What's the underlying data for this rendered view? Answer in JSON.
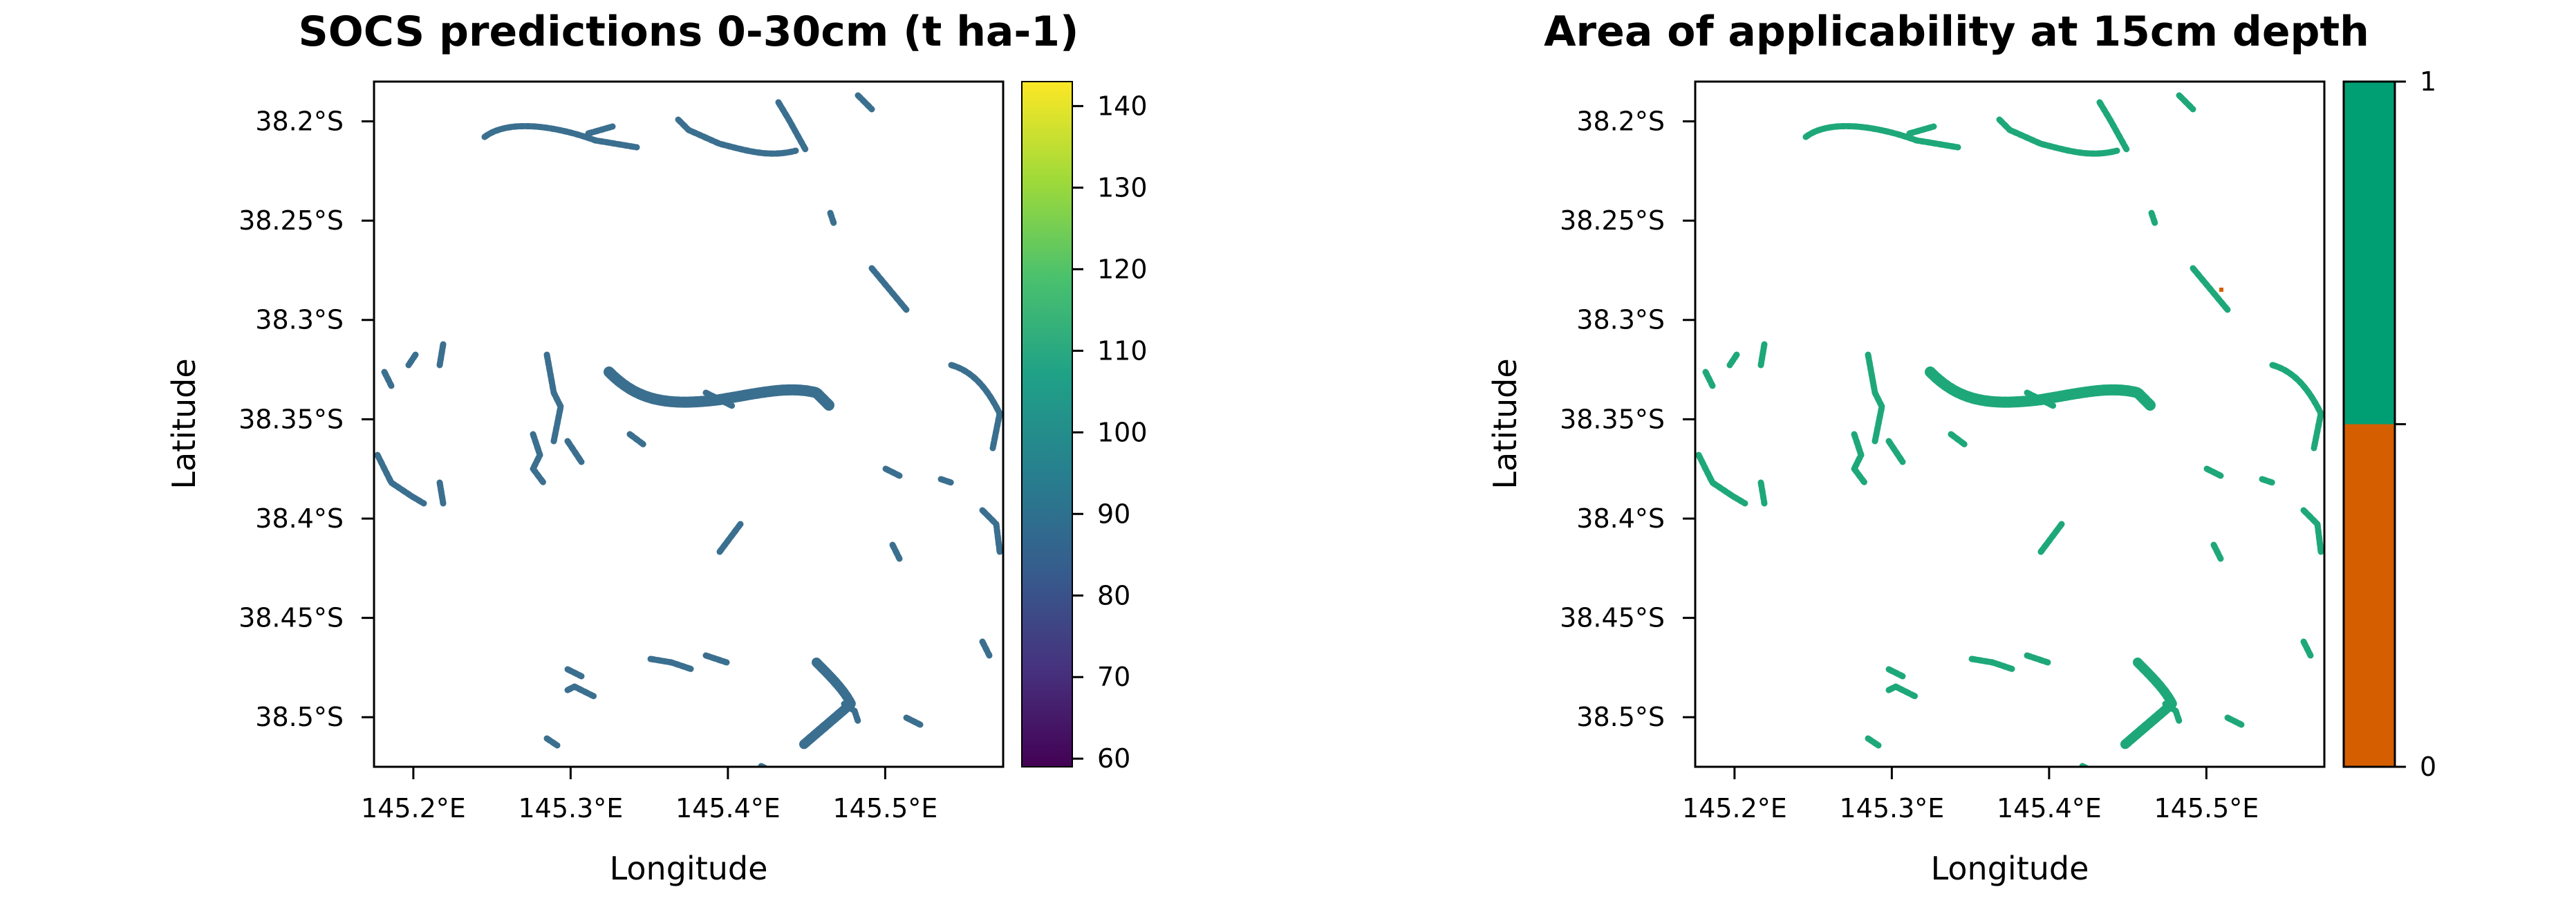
{
  "colors": {
    "predictions_ramp": [
      "#440154",
      "#46327e",
      "#365c8d",
      "#277f8e",
      "#1fa187",
      "#4ac16d",
      "#a0da39",
      "#fde725"
    ],
    "predicted_cells": "#3b6f8f",
    "inside_aoa": "#009e73",
    "outside_aoa": "#d55e00",
    "map_cells_aoa": "#1ea87a"
  },
  "chart_data": [
    {
      "type": "heatmap",
      "title": "SOCS predictions 0-30cm (t ha-1)",
      "xlabel": "Longitude",
      "ylabel": "Latitude",
      "xlim": [
        145.175,
        145.575
      ],
      "ylim": [
        -38.525,
        -38.18
      ],
      "grid": false,
      "x_ticks": [
        145.2,
        145.3,
        145.4,
        145.5
      ],
      "x_tick_labels": [
        "145.2°E",
        "145.3°E",
        "145.4°E",
        "145.5°E"
      ],
      "y_ticks": [
        -38.2,
        -38.25,
        -38.3,
        -38.35,
        -38.4,
        -38.45,
        -38.5
      ],
      "y_tick_labels": [
        "38.2°S",
        "38.25°S",
        "38.3°S",
        "38.35°S",
        "38.4°S",
        "38.45°S",
        "38.5°S"
      ],
      "legend": {
        "type": "continuous",
        "placement": "right",
        "range": [
          59,
          143
        ],
        "ticks": [
          60,
          70,
          80,
          90,
          100,
          110,
          120,
          130,
          140
        ],
        "tick_labels": [
          "60",
          "70",
          "80",
          "90",
          "100",
          "110",
          "120",
          "130",
          "140"
        ]
      }
    },
    {
      "type": "heatmap",
      "title": "Area of applicability at 15cm depth",
      "xlabel": "Longitude",
      "ylabel": "Latitude",
      "xlim": [
        145.175,
        145.575
      ],
      "ylim": [
        -38.525,
        -38.18
      ],
      "grid": false,
      "x_ticks": [
        145.2,
        145.3,
        145.4,
        145.5
      ],
      "x_tick_labels": [
        "145.2°E",
        "145.3°E",
        "145.4°E",
        "145.5°E"
      ],
      "y_ticks": [
        -38.2,
        -38.25,
        -38.3,
        -38.35,
        -38.4,
        -38.45,
        -38.5
      ],
      "y_tick_labels": [
        "38.2°S",
        "38.25°S",
        "38.3°S",
        "38.35°S",
        "38.4°S",
        "38.45°S",
        "38.5°S"
      ],
      "legend": {
        "type": "categorical",
        "placement": "right",
        "classes": [
          {
            "value": 0,
            "label": "0",
            "color": "#d55e00"
          },
          {
            "value": 1,
            "label": "1",
            "color": "#009e73"
          }
        ]
      }
    }
  ]
}
